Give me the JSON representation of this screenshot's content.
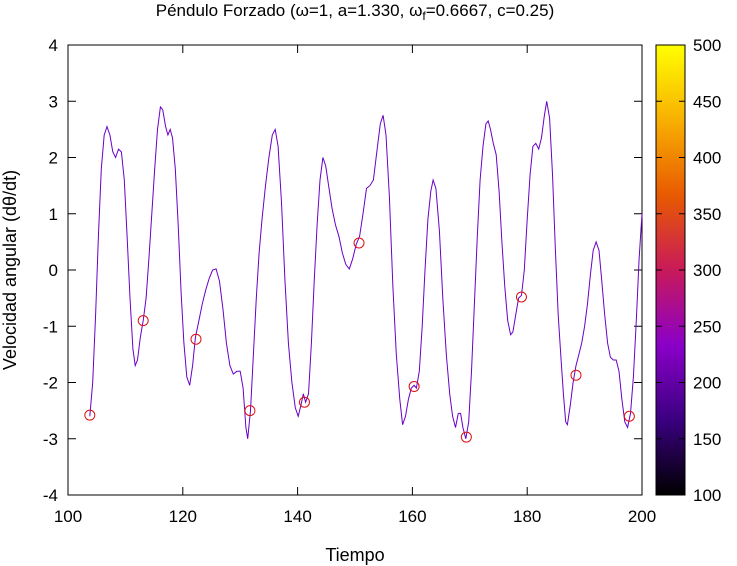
{
  "chart_data": {
    "type": "line",
    "title": "Péndulo Forzado (ω=1, a=1.330, ω",
    "title_sub": "f",
    "title_tail": "=0.6667, c=0.25)",
    "xlabel": "Tiempo",
    "ylabel": "Velocidad angular (dθ/dt)",
    "xlim": [
      100,
      200
    ],
    "ylim": [
      -4,
      4
    ],
    "xticks": [
      100,
      120,
      140,
      160,
      180,
      200
    ],
    "yticks": [
      -4,
      -3,
      -2,
      -1,
      0,
      1,
      2,
      3,
      4
    ],
    "line_color": "#6a00c8",
    "marker_color": "#dd1111",
    "series": [
      {
        "values": [
          [
            103.8,
            -2.6
          ],
          [
            104.3,
            -2.0
          ],
          [
            104.8,
            -0.8
          ],
          [
            105.3,
            0.6
          ],
          [
            105.8,
            1.8
          ],
          [
            106.3,
            2.4
          ],
          [
            106.8,
            2.55
          ],
          [
            107.3,
            2.4
          ],
          [
            107.8,
            2.1
          ],
          [
            108.3,
            2.0
          ],
          [
            108.8,
            2.15
          ],
          [
            109.3,
            2.1
          ],
          [
            109.8,
            1.6
          ],
          [
            110.3,
            0.6
          ],
          [
            110.8,
            -0.5
          ],
          [
            111.3,
            -1.4
          ],
          [
            111.7,
            -1.7
          ],
          [
            112.1,
            -1.6
          ],
          [
            112.6,
            -1.2
          ],
          [
            113.1,
            -0.9
          ],
          [
            113.6,
            -0.5
          ],
          [
            114.1,
            0.2
          ],
          [
            114.6,
            1.0
          ],
          [
            115.1,
            1.8
          ],
          [
            115.6,
            2.5
          ],
          [
            116.1,
            2.9
          ],
          [
            116.5,
            2.85
          ],
          [
            117.0,
            2.55
          ],
          [
            117.4,
            2.4
          ],
          [
            117.8,
            2.5
          ],
          [
            118.2,
            2.35
          ],
          [
            118.7,
            1.8
          ],
          [
            119.2,
            0.8
          ],
          [
            119.7,
            -0.4
          ],
          [
            120.2,
            -1.3
          ],
          [
            120.7,
            -1.9
          ],
          [
            121.2,
            -2.05
          ],
          [
            121.7,
            -1.7
          ],
          [
            122.2,
            -1.2
          ],
          [
            122.8,
            -0.9
          ],
          [
            123.4,
            -0.6
          ],
          [
            124.0,
            -0.35
          ],
          [
            124.6,
            -0.15
          ],
          [
            125.2,
            0.0
          ],
          [
            125.8,
            0.02
          ],
          [
            126.4,
            -0.2
          ],
          [
            127.0,
            -0.7
          ],
          [
            127.6,
            -1.3
          ],
          [
            128.2,
            -1.7
          ],
          [
            128.8,
            -1.85
          ],
          [
            129.4,
            -1.8
          ],
          [
            130.0,
            -1.8
          ],
          [
            130.5,
            -2.1
          ],
          [
            131.0,
            -2.8
          ],
          [
            131.3,
            -3.0
          ],
          [
            131.8,
            -2.5
          ],
          [
            132.3,
            -1.5
          ],
          [
            132.8,
            -0.5
          ],
          [
            133.3,
            0.3
          ],
          [
            133.8,
            0.9
          ],
          [
            134.4,
            1.5
          ],
          [
            135.0,
            2.0
          ],
          [
            135.6,
            2.4
          ],
          [
            136.1,
            2.5
          ],
          [
            136.6,
            2.2
          ],
          [
            137.2,
            1.2
          ],
          [
            137.8,
            -0.2
          ],
          [
            138.4,
            -1.3
          ],
          [
            139.0,
            -2.0
          ],
          [
            139.6,
            -2.45
          ],
          [
            140.1,
            -2.6
          ],
          [
            140.6,
            -2.4
          ],
          [
            141.0,
            -2.2
          ],
          [
            141.4,
            -2.35
          ],
          [
            141.9,
            -2.2
          ],
          [
            142.4,
            -1.3
          ],
          [
            142.9,
            -0.2
          ],
          [
            143.4,
            0.8
          ],
          [
            143.9,
            1.6
          ],
          [
            144.4,
            2.0
          ],
          [
            144.9,
            1.85
          ],
          [
            145.4,
            1.5
          ],
          [
            146.0,
            1.1
          ],
          [
            146.6,
            0.8
          ],
          [
            147.2,
            0.6
          ],
          [
            147.8,
            0.3
          ],
          [
            148.4,
            0.1
          ],
          [
            149.0,
            0.02
          ],
          [
            149.6,
            0.2
          ],
          [
            150.2,
            0.45
          ],
          [
            150.8,
            0.6
          ],
          [
            151.4,
            1.0
          ],
          [
            152.0,
            1.45
          ],
          [
            152.6,
            1.5
          ],
          [
            153.2,
            1.6
          ],
          [
            153.8,
            2.1
          ],
          [
            154.4,
            2.6
          ],
          [
            154.9,
            2.75
          ],
          [
            155.4,
            2.4
          ],
          [
            156.0,
            1.3
          ],
          [
            156.6,
            -0.3
          ],
          [
            157.2,
            -1.5
          ],
          [
            157.8,
            -2.3
          ],
          [
            158.3,
            -2.75
          ],
          [
            158.8,
            -2.6
          ],
          [
            159.3,
            -2.3
          ],
          [
            159.8,
            -2.1
          ],
          [
            160.3,
            -2.05
          ],
          [
            160.7,
            -2.1
          ],
          [
            161.2,
            -1.8
          ],
          [
            161.7,
            -1.0
          ],
          [
            162.2,
            0.0
          ],
          [
            162.7,
            0.9
          ],
          [
            163.2,
            1.4
          ],
          [
            163.6,
            1.6
          ],
          [
            164.1,
            1.45
          ],
          [
            164.7,
            0.7
          ],
          [
            165.3,
            -0.5
          ],
          [
            165.9,
            -1.5
          ],
          [
            166.5,
            -2.2
          ],
          [
            167.0,
            -2.6
          ],
          [
            167.5,
            -2.8
          ],
          [
            168.0,
            -2.55
          ],
          [
            168.4,
            -2.55
          ],
          [
            168.8,
            -2.8
          ],
          [
            169.3,
            -3.0
          ],
          [
            169.8,
            -2.7
          ],
          [
            170.3,
            -1.8
          ],
          [
            170.8,
            -0.6
          ],
          [
            171.3,
            0.6
          ],
          [
            171.8,
            1.6
          ],
          [
            172.3,
            2.2
          ],
          [
            172.8,
            2.6
          ],
          [
            173.2,
            2.65
          ],
          [
            173.6,
            2.5
          ],
          [
            174.1,
            2.25
          ],
          [
            174.6,
            2.05
          ],
          [
            175.1,
            1.4
          ],
          [
            175.6,
            0.5
          ],
          [
            176.1,
            -0.3
          ],
          [
            176.6,
            -0.9
          ],
          [
            177.1,
            -1.15
          ],
          [
            177.5,
            -1.1
          ],
          [
            178.0,
            -0.8
          ],
          [
            178.5,
            -0.5
          ],
          [
            179.0,
            -0.45
          ],
          [
            179.5,
            0.0
          ],
          [
            180.0,
            0.9
          ],
          [
            180.5,
            1.7
          ],
          [
            181.0,
            2.2
          ],
          [
            181.5,
            2.25
          ],
          [
            182.0,
            2.15
          ],
          [
            182.5,
            2.35
          ],
          [
            183.0,
            2.75
          ],
          [
            183.4,
            3.0
          ],
          [
            183.9,
            2.7
          ],
          [
            184.4,
            1.7
          ],
          [
            184.9,
            0.4
          ],
          [
            185.4,
            -0.8
          ],
          [
            185.9,
            -1.6
          ],
          [
            186.3,
            -2.2
          ],
          [
            186.7,
            -2.7
          ],
          [
            187.0,
            -2.75
          ],
          [
            187.5,
            -2.4
          ],
          [
            188.0,
            -2.0
          ],
          [
            188.5,
            -1.7
          ],
          [
            189.0,
            -1.5
          ],
          [
            189.5,
            -1.3
          ],
          [
            190.0,
            -1.0
          ],
          [
            190.5,
            -0.6
          ],
          [
            191.0,
            -0.1
          ],
          [
            191.5,
            0.35
          ],
          [
            192.0,
            0.5
          ],
          [
            192.5,
            0.35
          ],
          [
            193.0,
            -0.2
          ],
          [
            193.5,
            -0.8
          ],
          [
            194.0,
            -1.3
          ],
          [
            194.5,
            -1.55
          ],
          [
            195.0,
            -1.6
          ],
          [
            195.5,
            -1.6
          ],
          [
            196.0,
            -1.8
          ],
          [
            196.5,
            -2.3
          ],
          [
            197.0,
            -2.7
          ],
          [
            197.5,
            -2.8
          ],
          [
            198.0,
            -2.55
          ],
          [
            198.5,
            -1.9
          ],
          [
            199.0,
            -0.9
          ],
          [
            199.5,
            0.2
          ],
          [
            200.0,
            1.0
          ]
        ]
      }
    ],
    "markers": [
      [
        103.8,
        -2.58
      ],
      [
        113.1,
        -0.9
      ],
      [
        122.3,
        -1.23
      ],
      [
        131.7,
        -2.5
      ],
      [
        141.2,
        -2.35
      ],
      [
        150.7,
        0.48
      ],
      [
        160.3,
        -2.07
      ],
      [
        169.4,
        -2.97
      ],
      [
        179.0,
        -0.48
      ],
      [
        188.5,
        -1.87
      ],
      [
        197.8,
        -2.6
      ]
    ],
    "colorbar": {
      "range": [
        100,
        500
      ],
      "ticks": [
        100,
        150,
        200,
        250,
        300,
        350,
        400,
        450,
        500
      ],
      "stops": [
        "#000000",
        "#3a0080",
        "#8a00c8",
        "#c81a5a",
        "#e85a00",
        "#f8b000",
        "#ffff00"
      ]
    }
  }
}
